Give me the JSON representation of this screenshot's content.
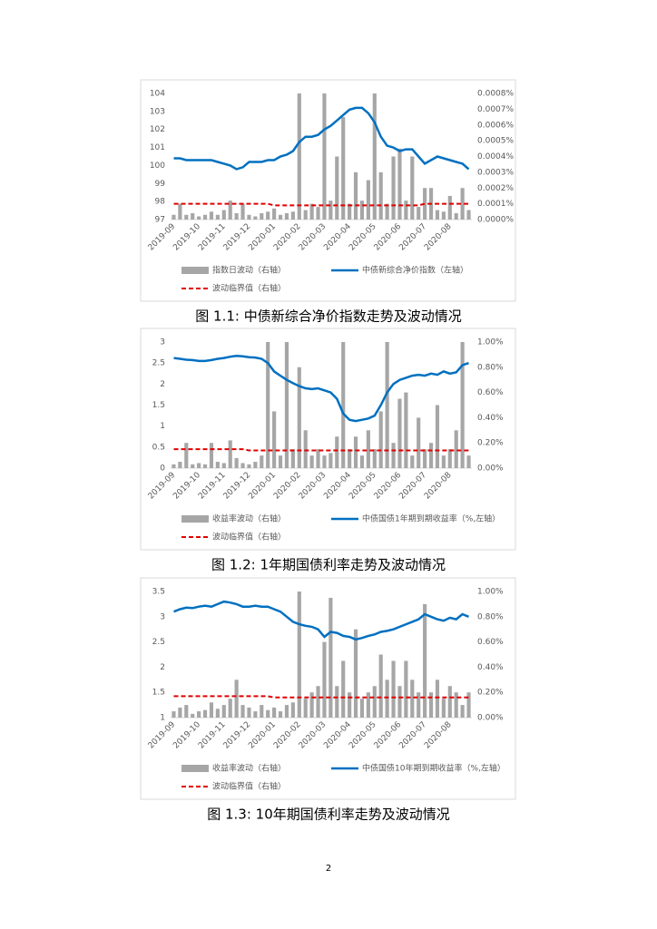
{
  "chart_data": [
    {
      "type": "combo",
      "caption": "图 1.1:  中债新综合净价指数走势及波动情况",
      "categories": [
        "2019-09",
        null,
        null,
        null,
        "2019-10",
        null,
        null,
        null,
        "2019-11",
        null,
        null,
        null,
        "2019-12",
        null,
        null,
        null,
        "2020-01",
        null,
        null,
        null,
        "2020-02",
        null,
        null,
        null,
        "2020-03",
        null,
        null,
        null,
        "2020-04",
        null,
        null,
        null,
        "2020-05",
        null,
        null,
        null,
        "2020-06",
        null,
        null,
        null,
        "2020-07",
        null,
        null,
        null,
        "2020-08",
        null,
        null,
        null
      ],
      "ylim": [
        97,
        104
      ],
      "yticks": [
        97,
        98,
        99,
        100,
        101,
        102,
        103,
        104
      ],
      "y2lim": [
        0,
        0.0008
      ],
      "y2ticks": [
        {
          "value": 0,
          "label": "0.0000%"
        },
        {
          "value": 0.0001,
          "label": "0.0001%"
        },
        {
          "value": 0.0002,
          "label": "0.0002%"
        },
        {
          "value": 0.0003,
          "label": "0.0003%"
        },
        {
          "value": 0.0004,
          "label": "0.0004%"
        },
        {
          "value": 0.0005,
          "label": "0.0005%"
        },
        {
          "value": 0.0006,
          "label": "0.0006%"
        },
        {
          "value": 0.0007,
          "label": "0.0007%"
        },
        {
          "value": 0.0008,
          "label": "0.0008%"
        }
      ],
      "series": [
        {
          "name": "指数日波动（右轴）",
          "kind": "bar",
          "axis": "y2",
          "color": "#a6a6a6",
          "values": [
            3e-05,
            0.0001,
            3e-05,
            4e-05,
            2e-05,
            3e-05,
            5e-05,
            3e-05,
            6e-05,
            0.00012,
            4e-05,
            0.0001,
            3e-05,
            2e-05,
            4e-05,
            5e-05,
            7e-05,
            3e-05,
            4e-05,
            5e-05,
            0.0008,
            6e-05,
            0.0001,
            8e-05,
            0.0008,
            0.00012,
            0.0004,
            0.00065,
            0.0001,
            0.0003,
            0.00012,
            0.00025,
            0.0008,
            0.0003,
            0.0001,
            0.0004,
            0.00045,
            0.00012,
            0.0004,
            8e-05,
            0.0002,
            0.0002,
            6e-05,
            5e-05,
            0.00015,
            4e-05,
            0.0002,
            6e-05
          ]
        },
        {
          "name": "中债新综合净价指数（左轴）",
          "kind": "line",
          "color": "#0070c0",
          "values": [
            100.4,
            100.4,
            100.3,
            100.3,
            100.3,
            100.3,
            100.3,
            100.2,
            100.1,
            100.0,
            99.8,
            99.9,
            100.2,
            100.2,
            100.2,
            100.3,
            100.3,
            100.5,
            100.6,
            100.8,
            101.3,
            101.6,
            101.6,
            101.7,
            102.0,
            102.2,
            102.5,
            102.8,
            103.1,
            103.2,
            103.2,
            102.9,
            102.4,
            101.6,
            101.1,
            101.0,
            100.8,
            100.9,
            100.9,
            100.5,
            100.1,
            100.3,
            100.5,
            100.4,
            100.3,
            100.2,
            100.1,
            99.8
          ]
        },
        {
          "name": "波动临界值（右轴）",
          "kind": "dashed",
          "axis": "y2",
          "color": "#e00000",
          "values": [
            0.0001,
            0.0001,
            0.0001,
            0.0001,
            0.0001,
            0.0001,
            0.0001,
            0.0001,
            0.0001,
            0.0001,
            0.0001,
            0.0001,
            0.0001,
            0.0001,
            0.0001,
            0.0001,
            9e-05,
            9e-05,
            9e-05,
            9e-05,
            9e-05,
            9e-05,
            9e-05,
            9e-05,
            9e-05,
            9e-05,
            9e-05,
            9e-05,
            9e-05,
            9e-05,
            9e-05,
            9e-05,
            9e-05,
            9e-05,
            9e-05,
            9e-05,
            9e-05,
            9e-05,
            9e-05,
            9e-05,
            0.0001,
            0.0001,
            0.0001,
            0.0001,
            0.0001,
            0.0001,
            0.0001,
            0.0001
          ]
        }
      ]
    },
    {
      "type": "combo",
      "caption": "图 1.2:  1年期国债利率走势及波动情况",
      "categories": [
        "2019-09",
        null,
        null,
        null,
        "2019-10",
        null,
        null,
        null,
        "2019-11",
        null,
        null,
        null,
        "2019-12",
        null,
        null,
        null,
        "2020-01",
        null,
        null,
        null,
        "2020-02",
        null,
        null,
        null,
        "2020-03",
        null,
        null,
        null,
        "2020-04",
        null,
        null,
        null,
        "2020-05",
        null,
        null,
        null,
        "2020-06",
        null,
        null,
        null,
        "2020-07",
        null,
        null,
        null,
        "2020-08",
        null,
        null,
        null
      ],
      "ylim": [
        0,
        3
      ],
      "yticks": [
        0,
        0.5,
        1,
        1.5,
        2,
        2.5,
        3
      ],
      "y2lim": [
        0,
        1
      ],
      "y2ticks": [
        {
          "value": 0,
          "label": "0.00%"
        },
        {
          "value": 0.2,
          "label": "0.20%"
        },
        {
          "value": 0.4,
          "label": "0.40%"
        },
        {
          "value": 0.6,
          "label": "0.60%"
        },
        {
          "value": 0.8,
          "label": "0.80%"
        },
        {
          "value": 1,
          "label": "1.00%"
        }
      ],
      "series": [
        {
          "name": "收益率波动（右轴）",
          "kind": "bar",
          "axis": "y2",
          "color": "#a6a6a6",
          "values": [
            0.03,
            0.05,
            0.2,
            0.03,
            0.04,
            0.03,
            0.2,
            0.05,
            0.04,
            0.22,
            0.08,
            0.04,
            0.03,
            0.05,
            0.1,
            1.0,
            0.45,
            0.1,
            1.0,
            0.15,
            0.8,
            0.3,
            0.1,
            0.15,
            0.1,
            0.12,
            0.25,
            1.0,
            0.15,
            0.25,
            0.1,
            0.3,
            0.15,
            0.45,
            1.0,
            0.2,
            0.55,
            0.6,
            0.1,
            0.4,
            0.15,
            0.2,
            0.5,
            0.1,
            0.15,
            0.3,
            1.0,
            0.1
          ]
        },
        {
          "name": "中债国债1年期到期收益率（%,左轴）",
          "kind": "line",
          "color": "#0070c0",
          "values": [
            2.62,
            2.6,
            2.58,
            2.57,
            2.55,
            2.55,
            2.57,
            2.6,
            2.62,
            2.65,
            2.67,
            2.66,
            2.64,
            2.63,
            2.6,
            2.5,
            2.3,
            2.2,
            2.1,
            2.02,
            1.95,
            1.9,
            1.88,
            1.9,
            1.85,
            1.8,
            1.65,
            1.3,
            1.15,
            1.12,
            1.15,
            1.18,
            1.25,
            1.5,
            1.8,
            2.0,
            2.1,
            2.15,
            2.2,
            2.22,
            2.2,
            2.25,
            2.22,
            2.3,
            2.25,
            2.28,
            2.45,
            2.5
          ]
        },
        {
          "name": "波动临界值（右轴）",
          "kind": "dashed",
          "axis": "y2",
          "color": "#e00000",
          "values": [
            0.15,
            0.15,
            0.15,
            0.15,
            0.15,
            0.15,
            0.15,
            0.15,
            0.15,
            0.15,
            0.15,
            0.15,
            0.14,
            0.14,
            0.14,
            0.14,
            0.14,
            0.14,
            0.14,
            0.14,
            0.14,
            0.14,
            0.14,
            0.14,
            0.14,
            0.14,
            0.14,
            0.14,
            0.14,
            0.14,
            0.14,
            0.14,
            0.14,
            0.14,
            0.14,
            0.14,
            0.14,
            0.14,
            0.14,
            0.14,
            0.14,
            0.14,
            0.14,
            0.14,
            0.14,
            0.14,
            0.14,
            0.14
          ]
        }
      ]
    },
    {
      "type": "combo",
      "caption": "图 1.3:  10年期国债利率走势及波动情况",
      "categories": [
        "2019-09",
        null,
        null,
        null,
        "2019-10",
        null,
        null,
        null,
        "2019-11",
        null,
        null,
        null,
        "2019-12",
        null,
        null,
        null,
        "2020-01",
        null,
        null,
        null,
        "2020-02",
        null,
        null,
        null,
        "2020-03",
        null,
        null,
        null,
        "2020-04",
        null,
        null,
        null,
        "2020-05",
        null,
        null,
        null,
        "2020-06",
        null,
        null,
        null,
        "2020-07",
        null,
        null,
        null,
        "2020-08",
        null,
        null,
        null
      ],
      "ylim": [
        1,
        3.5
      ],
      "yticks": [
        1,
        1.5,
        2,
        2.5,
        3,
        3.5
      ],
      "y2lim": [
        0,
        1
      ],
      "y2ticks": [
        {
          "value": 0,
          "label": "0.00%"
        },
        {
          "value": 0.2,
          "label": "0.20%"
        },
        {
          "value": 0.4,
          "label": "0.40%"
        },
        {
          "value": 0.6,
          "label": "0.60%"
        },
        {
          "value": 0.8,
          "label": "0.80%"
        },
        {
          "value": 1,
          "label": "1.00%"
        }
      ],
      "series": [
        {
          "name": "收益率波动（右轴）",
          "kind": "bar",
          "axis": "y2",
          "color": "#a6a6a6",
          "values": [
            0.05,
            0.08,
            0.1,
            0.03,
            0.05,
            0.06,
            0.12,
            0.07,
            0.1,
            0.15,
            0.3,
            0.1,
            0.08,
            0.05,
            0.1,
            0.06,
            0.08,
            0.05,
            0.1,
            0.12,
            1.0,
            0.15,
            0.2,
            0.25,
            0.6,
            0.95,
            0.25,
            0.45,
            0.2,
            0.7,
            0.15,
            0.2,
            0.25,
            0.5,
            0.3,
            0.45,
            0.25,
            0.45,
            0.3,
            0.2,
            0.9,
            0.2,
            0.3,
            0.15,
            0.25,
            0.2,
            0.1,
            0.2
          ]
        },
        {
          "name": "中债国债10年期到期收益率（%,左轴）",
          "kind": "line",
          "color": "#0070c0",
          "values": [
            3.1,
            3.15,
            3.18,
            3.17,
            3.2,
            3.22,
            3.2,
            3.25,
            3.3,
            3.28,
            3.25,
            3.2,
            3.2,
            3.22,
            3.2,
            3.2,
            3.15,
            3.1,
            3.0,
            2.9,
            2.85,
            2.82,
            2.8,
            2.75,
            2.6,
            2.7,
            2.68,
            2.62,
            2.6,
            2.55,
            2.58,
            2.62,
            2.65,
            2.7,
            2.72,
            2.75,
            2.8,
            2.85,
            2.9,
            2.95,
            3.05,
            3.0,
            2.95,
            2.92,
            2.98,
            2.95,
            3.05,
            3.0
          ]
        },
        {
          "name": "波动临界值（右轴）",
          "kind": "dashed",
          "axis": "y2",
          "color": "#e00000",
          "values": [
            0.17,
            0.17,
            0.17,
            0.17,
            0.17,
            0.17,
            0.17,
            0.17,
            0.17,
            0.17,
            0.17,
            0.17,
            0.17,
            0.17,
            0.17,
            0.17,
            0.16,
            0.16,
            0.16,
            0.16,
            0.16,
            0.16,
            0.16,
            0.16,
            0.16,
            0.16,
            0.16,
            0.16,
            0.16,
            0.16,
            0.16,
            0.16,
            0.16,
            0.16,
            0.16,
            0.16,
            0.16,
            0.16,
            0.16,
            0.16,
            0.16,
            0.16,
            0.16,
            0.16,
            0.16,
            0.16,
            0.16,
            0.16
          ]
        }
      ]
    }
  ],
  "page_number": "2"
}
